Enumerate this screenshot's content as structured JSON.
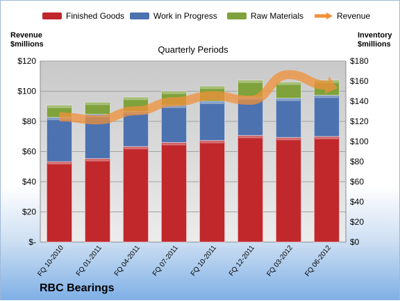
{
  "chart_data": {
    "type": "bar",
    "stacked": true,
    "title": "Quarterly Periods",
    "company_label": "RBC Bearings",
    "y_left_label": "Revenue\n$millions",
    "y_right_label": "Inventory\n$millions",
    "y_left_ticks": [
      "$-",
      "$20",
      "$40",
      "$60",
      "$80",
      "$100",
      "$120"
    ],
    "y_right_ticks": [
      "$0",
      "$20",
      "$40",
      "$60",
      "$80",
      "$100",
      "$120",
      "$140",
      "$160",
      "$180"
    ],
    "ylim_left": [
      0,
      120
    ],
    "ylim_right": [
      0,
      180
    ],
    "categories": [
      "FQ 10-2010",
      "FQ 01-2011",
      "FQ 04-2011",
      "FQ 07-2011",
      "FQ 10-2011",
      "FQ 12-2011",
      "FQ 03-2012",
      "FQ 06-2012"
    ],
    "series": [
      {
        "name": "Finished Goods",
        "axis": "right",
        "values": [
          80,
          83,
          95,
          99,
          101,
          106,
          104,
          105
        ],
        "color": "#c0282c"
      },
      {
        "name": "Work in Progress",
        "axis": "right",
        "values": [
          44,
          44,
          35,
          37,
          39,
          38,
          39,
          41
        ],
        "color": "#4d72b0"
      },
      {
        "name": "Raw Materials",
        "axis": "right",
        "values": [
          12,
          12,
          14,
          14,
          15,
          17,
          16,
          15
        ],
        "color": "#7fa23c"
      },
      {
        "name": "Revenue",
        "axis": "left",
        "type": "line",
        "values": [
          83,
          81,
          87,
          93,
          97,
          94,
          111,
          104
        ],
        "color": "#f0903a"
      }
    ],
    "legend_position": "top",
    "grid": true
  }
}
